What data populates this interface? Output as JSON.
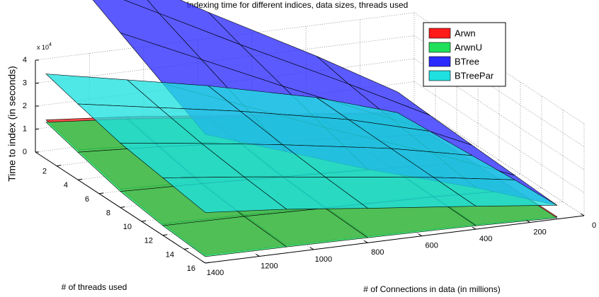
{
  "chart_data": {
    "type": "surface",
    "title": "Indexing time for different indices, data sizes, threads used",
    "xlabel": "# of Connections in data (in millions)",
    "ylabel": "# of threads used",
    "zlabel": "Time to index (in seconds)",
    "zscale": {
      "base": "x 10",
      "exponent": "4"
    },
    "x": [
      100,
      400,
      800,
      1100,
      1400
    ],
    "y": [
      1,
      4,
      8,
      12,
      16
    ],
    "xlim": [
      0,
      1400
    ],
    "xticks": [
      0,
      200,
      400,
      600,
      800,
      1000,
      1200,
      1400
    ],
    "ylim": [
      0,
      16
    ],
    "yticks": [
      2,
      4,
      6,
      8,
      10,
      12,
      14,
      16
    ],
    "zlim": [
      0,
      4
    ],
    "zticks": [
      0,
      1,
      2,
      3,
      4
    ],
    "grid": true,
    "legend": "northeast",
    "series": [
      {
        "name": "Arwn",
        "color": "#ff1a1a",
        "values": [
          [
            0.1,
            0.5,
            1.0,
            1.4,
            1.7
          ],
          [
            0.1,
            0.4,
            0.8,
            1.1,
            1.3
          ],
          [
            0.1,
            0.3,
            0.5,
            0.7,
            0.8
          ],
          [
            0.1,
            0.25,
            0.35,
            0.45,
            0.5
          ],
          [
            0.1,
            0.2,
            0.28,
            0.32,
            0.35
          ]
        ]
      },
      {
        "name": "ArwnU",
        "color": "#1fe05a",
        "values": [
          [
            0.05,
            0.45,
            0.9,
            1.3,
            1.6
          ],
          [
            0.05,
            0.35,
            0.7,
            1.0,
            1.2
          ],
          [
            0.05,
            0.25,
            0.45,
            0.6,
            0.7
          ],
          [
            0.05,
            0.2,
            0.3,
            0.38,
            0.42
          ],
          [
            0.05,
            0.15,
            0.22,
            0.26,
            0.28
          ]
        ]
      },
      {
        "name": "BTree",
        "color": "#2b2bff",
        "values": [
          [
            1.0,
            3.0,
            5.5,
            7.5,
            9.5
          ],
          [
            0.9,
            2.7,
            5.0,
            6.8,
            8.6
          ],
          [
            0.8,
            2.4,
            4.4,
            6.0,
            7.6
          ],
          [
            0.7,
            2.1,
            3.8,
            5.2,
            6.6
          ],
          [
            0.6,
            1.8,
            3.2,
            4.4,
            5.6
          ]
        ]
      },
      {
        "name": "BTreePar",
        "color": "#1fe0e0",
        "values": [
          [
            0.1,
            1.2,
            2.3,
            3.0,
            3.7
          ],
          [
            0.2,
            1.15,
            2.1,
            2.7,
            3.3
          ],
          [
            0.35,
            1.1,
            1.85,
            2.35,
            2.8
          ],
          [
            0.5,
            1.05,
            1.65,
            2.1,
            2.5
          ],
          [
            0.6,
            1.0,
            1.5,
            1.9,
            2.2
          ]
        ]
      }
    ]
  }
}
